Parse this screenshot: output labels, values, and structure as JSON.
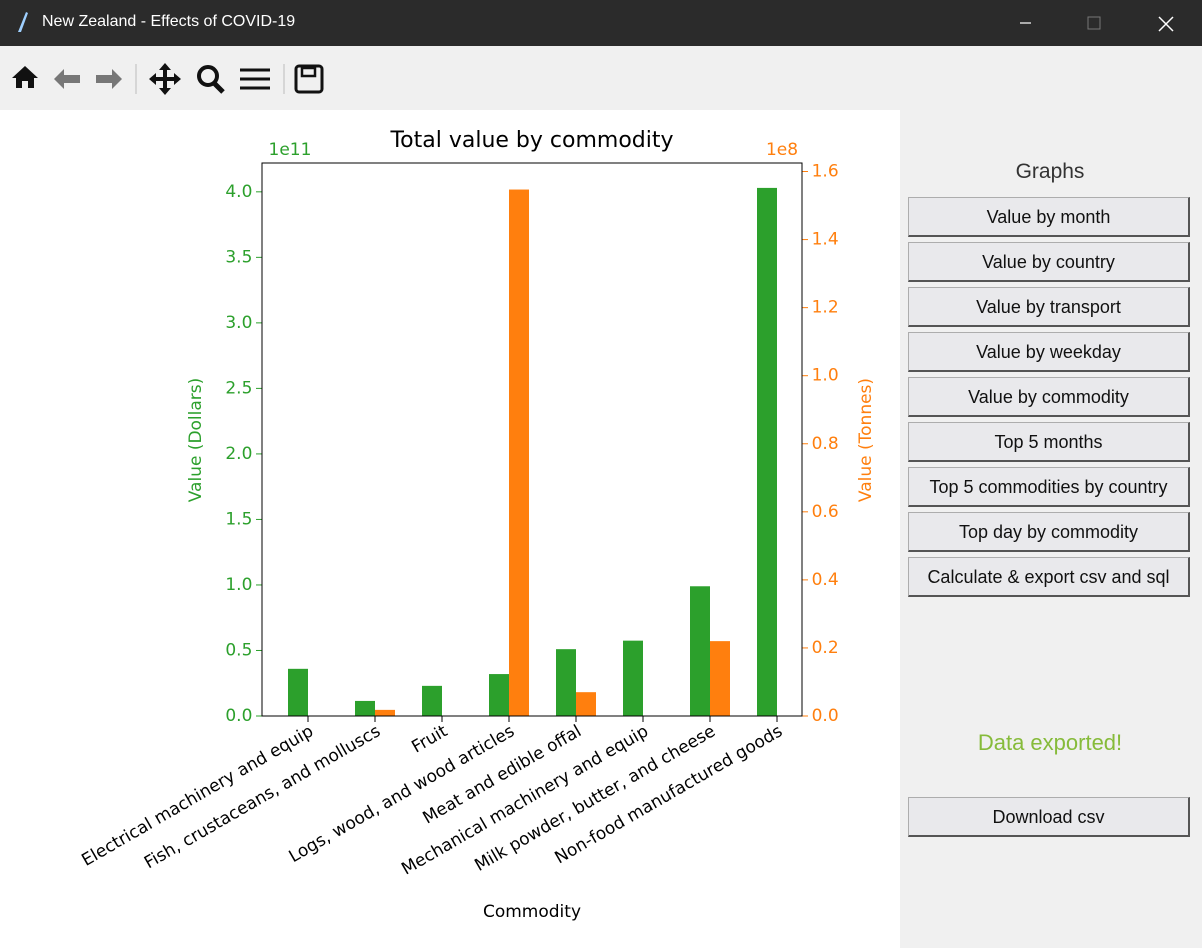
{
  "window": {
    "title": "New Zealand - Effects of COVID-19"
  },
  "chart_data": {
    "type": "bar",
    "title": "Total value by commodity",
    "x_label": "Commodity",
    "y_label": "Value (Dollars)",
    "y2_label": "Value (Tonnes)",
    "y_offset": "1e11",
    "y2_offset": "1e8",
    "categories": [
      "Electrical machinery and equip",
      "Fish, crustaceans, and molluscs",
      "Fruit",
      "Logs, wood, and wood articles",
      "Meat and edible offal",
      "Mechanical machinery and equip",
      "Milk powder, butter, and cheese",
      "Non-food manufactured goods"
    ],
    "series": [
      {
        "name": "Value (Dollars)",
        "color": "#2ca02c",
        "values": [
          0.36,
          0.115,
          0.23,
          0.32,
          0.51,
          0.575,
          0.99,
          4.03
        ]
      },
      {
        "name": "Value (Tonnes)",
        "color": "#ff7f0e",
        "axis": "y2",
        "values": [
          0,
          0.018,
          0,
          1.547,
          0.07,
          0,
          0.22,
          0
        ]
      }
    ],
    "ylim": [
      0,
      4.22
    ],
    "yticks": [
      {
        "value": 0,
        "label": "0.0"
      },
      0.5,
      {
        "value": 1,
        "label": "1.0"
      },
      1.5,
      {
        "value": 2,
        "label": "2.0"
      },
      2.5,
      {
        "value": 3,
        "label": "3.0"
      },
      3.5,
      {
        "value": 4,
        "label": "4.0"
      }
    ],
    "y2lim": [
      0,
      1.625
    ],
    "y2ticks": [
      {
        "value": 0,
        "label": "0.0"
      },
      0.2,
      0.4,
      0.6,
      0.8,
      {
        "value": 1,
        "label": "1.0"
      },
      1.2,
      1.4,
      1.6
    ]
  },
  "panel": {
    "heading": "Graphs",
    "buttons": [
      "Value by month",
      "Value by country",
      "Value by transport",
      "Value by weekday",
      "Value by commodity",
      "Top 5 months",
      "Top 5 commodities by country",
      "Top day by commodity",
      "Calculate & export csv and sql"
    ],
    "status": "Data exported!",
    "download": "Download csv"
  }
}
